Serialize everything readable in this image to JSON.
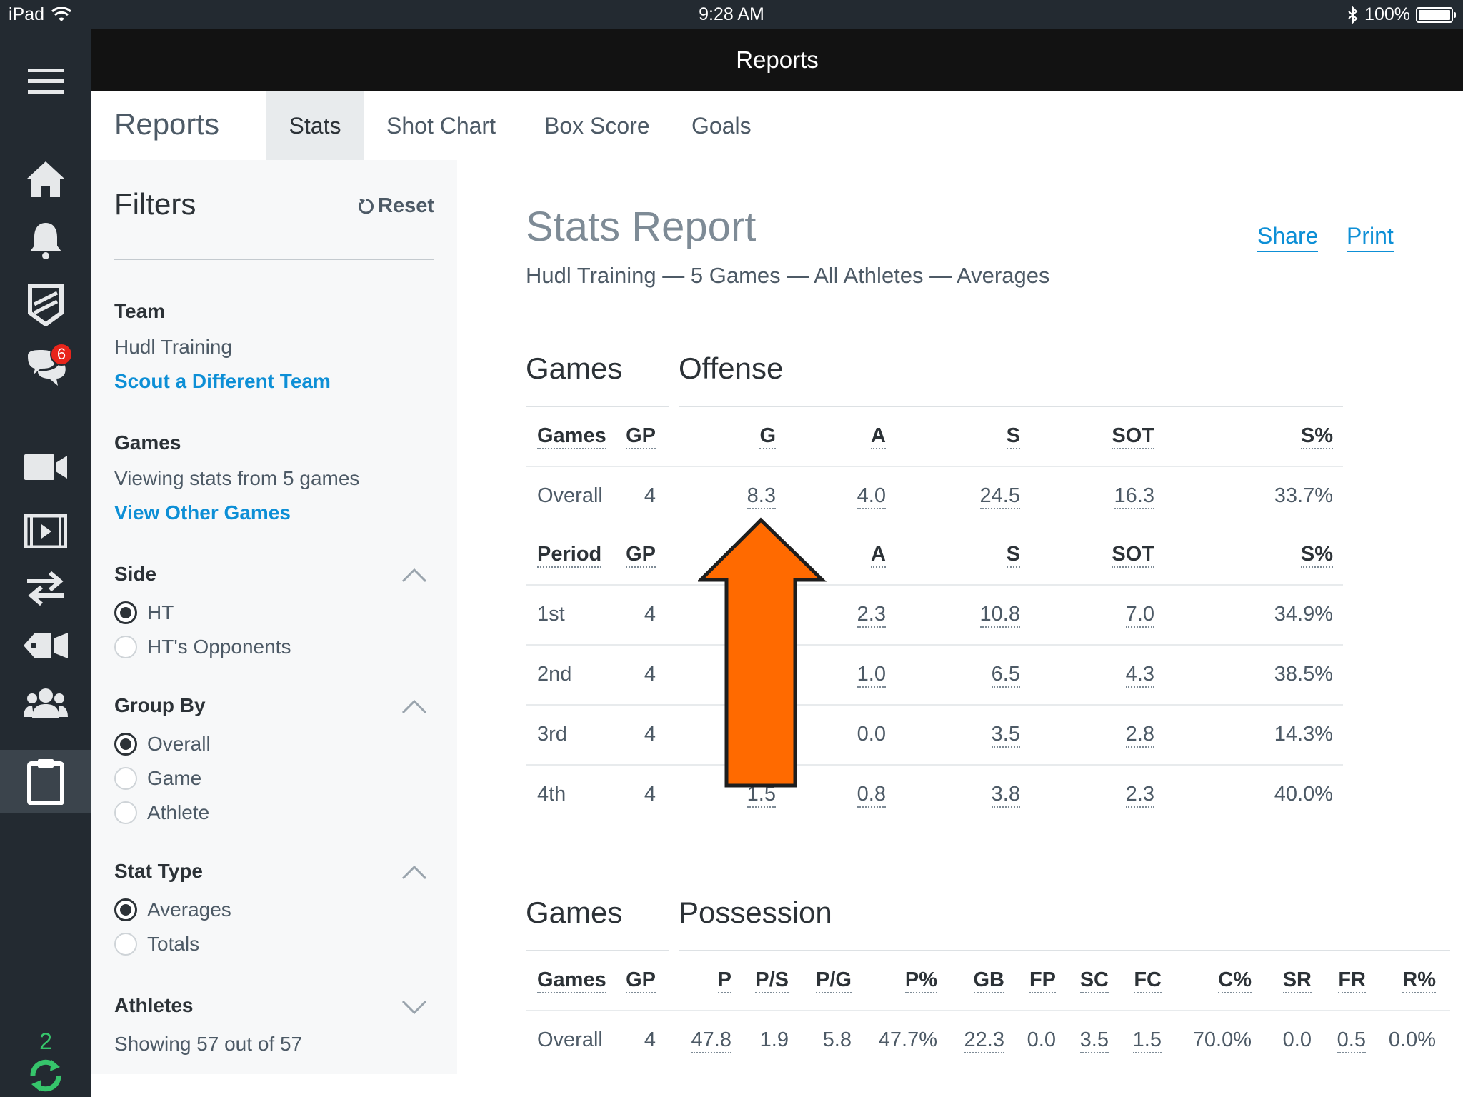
{
  "status_bar": {
    "device": "iPad",
    "time": "9:28 AM",
    "battery": "100%",
    "battery_level": 1.0
  },
  "app": {
    "title": "Reports"
  },
  "rail": {
    "messages_badge": "6",
    "sync_count": "2"
  },
  "tabs": {
    "section_title": "Reports",
    "items": [
      {
        "label": "Stats",
        "active": true
      },
      {
        "label": "Shot Chart"
      },
      {
        "label": "Box Score"
      },
      {
        "label": "Goals"
      }
    ]
  },
  "filters": {
    "title": "Filters",
    "reset": "Reset",
    "team": {
      "heading": "Team",
      "value": "Hudl Training",
      "link": "Scout a Different Team"
    },
    "games": {
      "heading": "Games",
      "value": "Viewing stats from 5 games",
      "link": "View Other Games"
    },
    "side": {
      "heading": "Side",
      "options": [
        "HT",
        "HT's Opponents"
      ],
      "selected": "HT"
    },
    "group_by": {
      "heading": "Group By",
      "options": [
        "Overall",
        "Game",
        "Athlete"
      ],
      "selected": "Overall"
    },
    "stat_type": {
      "heading": "Stat Type",
      "options": [
        "Averages",
        "Totals"
      ],
      "selected": "Averages"
    },
    "athletes": {
      "heading": "Athletes",
      "value": "Showing 57 out of 57"
    }
  },
  "report": {
    "title": "Stats Report",
    "subtitle": "Hudl Training — 5 Games — All Athletes — Averages",
    "share": "Share",
    "print": "Print",
    "offense": {
      "games_title": "Games",
      "title": "Offense",
      "header": [
        "Games",
        "GP",
        "G",
        "A",
        "S",
        "SOT",
        "S%"
      ],
      "overall": [
        "Overall",
        "4",
        "8.3",
        "4.0",
        "24.5",
        "16.3",
        "33.7%"
      ],
      "period_header": [
        "Period",
        "GP",
        "G",
        "A",
        "S",
        "SOT",
        "S%"
      ],
      "periods": [
        [
          "1st",
          "4",
          "",
          "2.3",
          "10.8",
          "7.0",
          "34.9%"
        ],
        [
          "2nd",
          "4",
          "",
          "1.0",
          "6.5",
          "4.3",
          "38.5%"
        ],
        [
          "3rd",
          "4",
          "",
          "0.0",
          "3.5",
          "2.8",
          "14.3%"
        ],
        [
          "4th",
          "4",
          "1.5",
          "0.8",
          "3.8",
          "2.3",
          "40.0%"
        ]
      ]
    },
    "possession": {
      "games_title": "Games",
      "title": "Possession",
      "header": [
        "Games",
        "GP",
        "P",
        "P/S",
        "P/G",
        "P%",
        "GB",
        "FP",
        "SC",
        "FC",
        "C%",
        "SR",
        "FR",
        "R%"
      ],
      "overall": [
        "Overall",
        "4",
        "47.8",
        "1.9",
        "5.8",
        "47.7%",
        "22.3",
        "0.0",
        "3.5",
        "1.5",
        "70.0%",
        "0.0",
        "0.5",
        "0.0%"
      ]
    }
  },
  "colors": {
    "accent": "#0d8fd6",
    "rail": "#232a31",
    "arrow": "#ff6a00",
    "badge": "#e8251b",
    "sync": "#36c46b"
  }
}
